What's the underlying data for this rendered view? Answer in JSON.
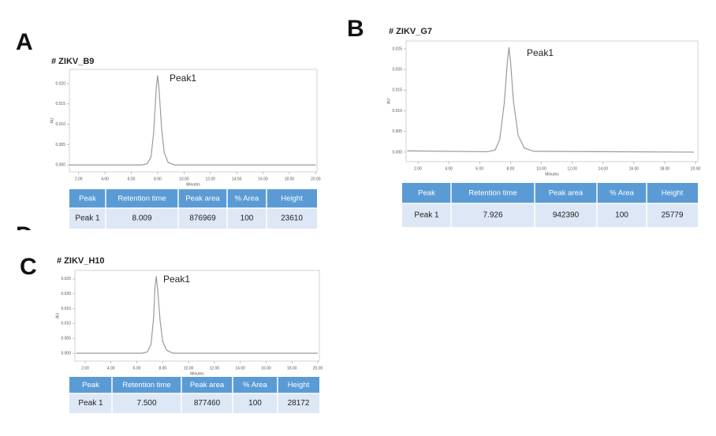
{
  "chart_data": [
    {
      "type": "line",
      "label": "A",
      "title": "# ZIKV_B9",
      "annotation": "Peak1",
      "xlabel": "Minutes",
      "ylabel": "AU",
      "xlim": [
        1.3,
        20.1
      ],
      "ylim": [
        -0.0017,
        0.0235
      ],
      "xticks": [
        {
          "value": 2,
          "label": "2.00"
        },
        {
          "value": 4,
          "label": "4.00"
        },
        {
          "value": 6,
          "label": "6.00"
        },
        {
          "value": 8,
          "label": "8.00"
        },
        {
          "value": 10,
          "label": "10.00"
        },
        {
          "value": 12,
          "label": "12.00"
        },
        {
          "value": 14,
          "label": "14.00"
        },
        {
          "value": 16,
          "label": "16.00"
        },
        {
          "value": 18,
          "label": "18.00"
        },
        {
          "value": 20,
          "label": "20.00"
        }
      ],
      "yticks": [
        {
          "value": 0,
          "label": "0.000"
        },
        {
          "value": 0.005,
          "label": "0.005"
        },
        {
          "value": 0.01,
          "label": "0.010"
        },
        {
          "value": 0.015,
          "label": "0.015"
        },
        {
          "value": 0.02,
          "label": "0.020"
        }
      ],
      "x": [
        1.3,
        6.8,
        7.2,
        7.5,
        7.7,
        7.9,
        8.0,
        8.1,
        8.3,
        8.5,
        8.8,
        9.3,
        20
      ],
      "values": [
        0,
        0,
        0.0003,
        0.002,
        0.008,
        0.019,
        0.022,
        0.019,
        0.009,
        0.003,
        0.0006,
        0,
        0
      ],
      "color": "#9a9a9a"
    },
    {
      "type": "line",
      "label": "B",
      "title": "# ZIKV_G7",
      "annotation": "Peak1",
      "xlabel": "Minutes",
      "ylabel": "AU",
      "xlim": [
        1.23,
        20.15
      ],
      "ylim": [
        -0.0023,
        0.0269
      ],
      "xticks": [
        {
          "value": 2,
          "label": "2.00"
        },
        {
          "value": 4,
          "label": "4.00"
        },
        {
          "value": 6,
          "label": "6.00"
        },
        {
          "value": 8,
          "label": "8.00"
        },
        {
          "value": 10,
          "label": "10.00"
        },
        {
          "value": 12,
          "label": "12.00"
        },
        {
          "value": 14,
          "label": "14.00"
        },
        {
          "value": 16,
          "label": "16.00"
        },
        {
          "value": 18,
          "label": "18.00"
        },
        {
          "value": 20,
          "label": "20.00"
        }
      ],
      "yticks": [
        {
          "value": 0,
          "label": "0.000"
        },
        {
          "value": 0.005,
          "label": "0.005"
        },
        {
          "value": 0.01,
          "label": "0.010"
        },
        {
          "value": 0.015,
          "label": "0.015"
        },
        {
          "value": 0.02,
          "label": "0.020"
        },
        {
          "value": 0.025,
          "label": "0.025"
        }
      ],
      "x": [
        1.3,
        6.5,
        7.0,
        7.3,
        7.6,
        7.8,
        7.9,
        8.0,
        8.2,
        8.5,
        8.9,
        9.5,
        19.9
      ],
      "values": [
        0.0003,
        0.0001,
        0.0005,
        0.003,
        0.012,
        0.022,
        0.0254,
        0.022,
        0.012,
        0.004,
        0.001,
        0.0002,
        0
      ],
      "color": "#9a9a9a"
    },
    {
      "type": "line",
      "label": "C",
      "title": "# ZIKV_H10",
      "annotation": "Peak1",
      "xlabel": "Minutes",
      "ylabel": "AU",
      "xlim": [
        1.21,
        20.12
      ],
      "ylim": [
        -0.00266,
        0.0279
      ],
      "xticks": [
        {
          "value": 2,
          "label": "2.00"
        },
        {
          "value": 4,
          "label": "4.00"
        },
        {
          "value": 6,
          "label": "6.00"
        },
        {
          "value": 8,
          "label": "8.00"
        },
        {
          "value": 10,
          "label": "10.00"
        },
        {
          "value": 12,
          "label": "12.00"
        },
        {
          "value": 14,
          "label": "14.00"
        },
        {
          "value": 16,
          "label": "16.00"
        },
        {
          "value": 18,
          "label": "18.00"
        },
        {
          "value": 20,
          "label": "20.00"
        }
      ],
      "yticks": [
        {
          "value": 0,
          "label": "0.000"
        },
        {
          "value": 0.005,
          "label": "0.005"
        },
        {
          "value": 0.01,
          "label": "0.010"
        },
        {
          "value": 0.015,
          "label": "0.015"
        },
        {
          "value": 0.02,
          "label": "0.020"
        },
        {
          "value": 0.025,
          "label": "0.025"
        }
      ],
      "x": [
        1.3,
        6.4,
        6.8,
        7.1,
        7.3,
        7.4,
        7.5,
        7.6,
        7.8,
        8.0,
        8.3,
        8.8,
        20
      ],
      "values": [
        0,
        0,
        0.0004,
        0.003,
        0.012,
        0.022,
        0.026,
        0.022,
        0.011,
        0.004,
        0.001,
        0,
        0
      ],
      "color": "#9a9a9a"
    }
  ],
  "tables": [
    {
      "headers": [
        "Peak",
        "Retention  time",
        "Peak area",
        "% Area",
        "Height"
      ],
      "rows": [
        [
          "Peak 1",
          "8.009",
          "876969",
          "100",
          "23610"
        ]
      ]
    },
    {
      "headers": [
        "Peak",
        "Retention  time",
        "Peak area",
        "% Area",
        "Height"
      ],
      "rows": [
        [
          "Peak 1",
          "7.926",
          "942390",
          "100",
          "25779"
        ]
      ]
    },
    {
      "headers": [
        "Peak",
        "Retention  time",
        "Peak area",
        "% Area",
        "Height"
      ],
      "rows": [
        [
          "Peak 1",
          "7.500",
          "877460",
          "100",
          "28172"
        ]
      ]
    }
  ],
  "hidden_letter": "D"
}
